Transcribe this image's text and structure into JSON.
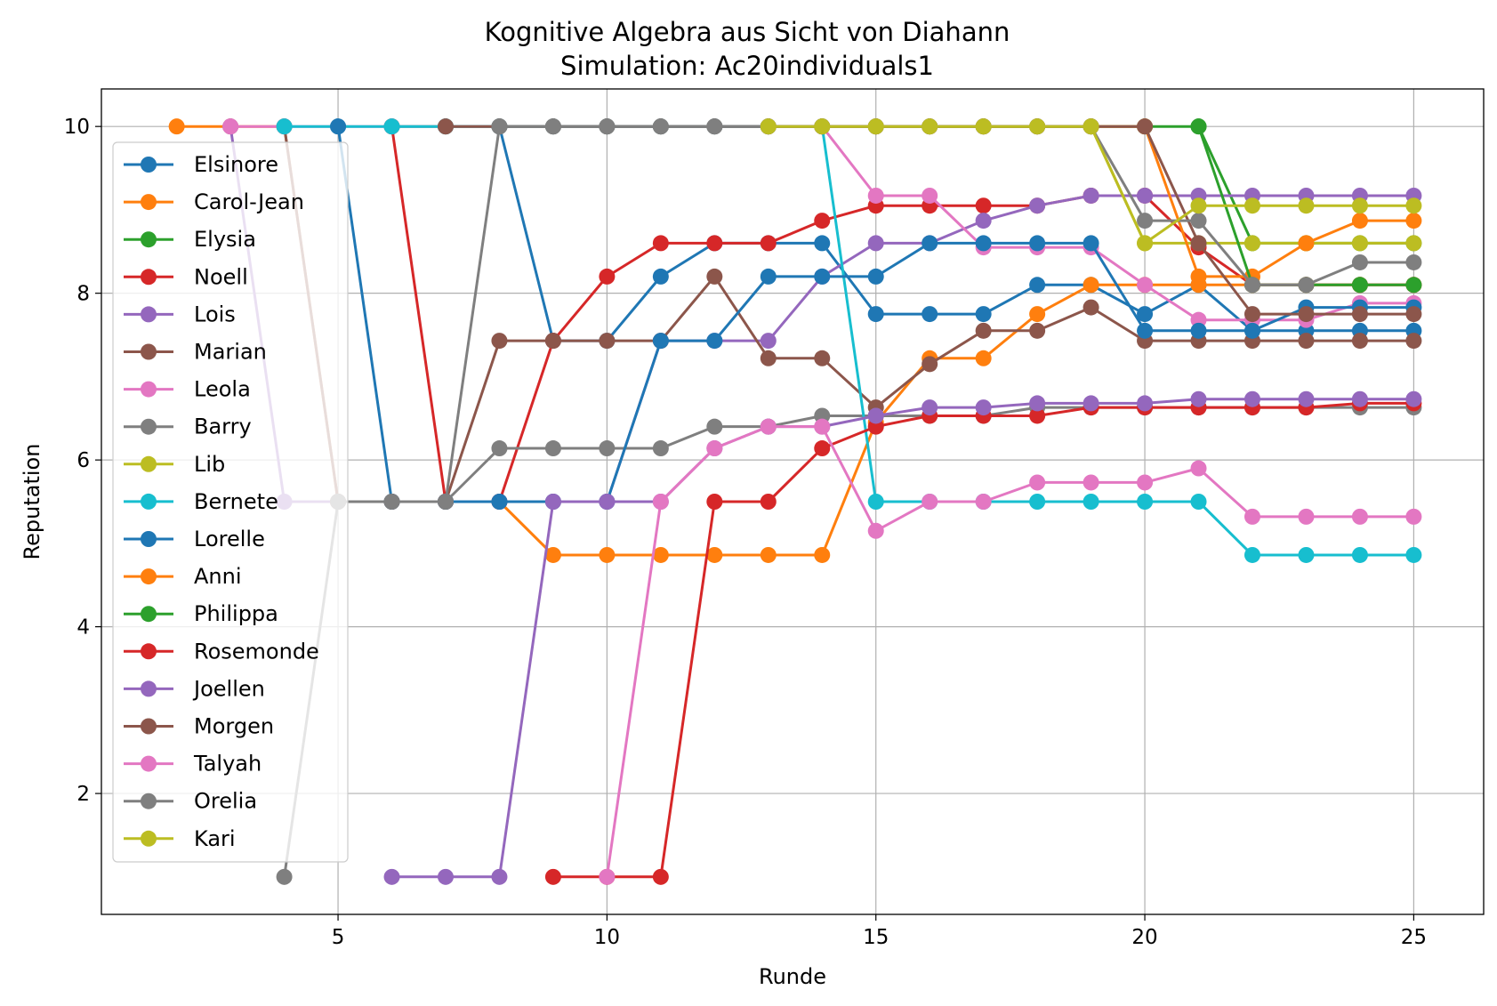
{
  "chart_data": {
    "type": "line",
    "title": "Kognitive Algebra aus Sicht von Diahann",
    "subtitle": "Simulation: Ac20individuals1",
    "xlabel": "Runde",
    "ylabel": "Reputation",
    "xlim": [
      0.6,
      26.3
    ],
    "ylim": [
      0.55,
      10.45
    ],
    "xticks": [
      5,
      10,
      15,
      20,
      25
    ],
    "yticks": [
      2,
      4,
      6,
      8,
      10
    ],
    "grid": true,
    "legend_position": "upper left",
    "series": [
      {
        "name": "Elsinore",
        "color": "#1f77b4",
        "x": [
          8,
          9,
          10,
          11,
          12,
          13,
          14,
          15,
          16,
          17,
          18,
          19,
          20,
          21,
          22,
          23,
          24,
          25
        ],
        "y": [
          10,
          7.43,
          7.43,
          8.2,
          8.6,
          8.6,
          8.6,
          7.75,
          7.75,
          7.75,
          8.1,
          8.1,
          7.75,
          8.1,
          7.55,
          7.55,
          7.55,
          7.55
        ]
      },
      {
        "name": "Carol-Jean",
        "color": "#ff7f0e",
        "x": [
          2,
          3,
          4,
          5,
          6,
          7,
          8,
          9,
          10,
          11,
          12,
          13,
          14,
          15,
          16,
          17,
          18,
          19,
          20,
          21,
          22,
          23,
          24,
          25
        ],
        "y": [
          10,
          10,
          10,
          5.5,
          5.5,
          5.5,
          5.5,
          4.86,
          4.86,
          4.86,
          4.86,
          4.86,
          4.86,
          6.45,
          7.22,
          7.22,
          7.75,
          8.1,
          8.1,
          8.1,
          8.1,
          8.1,
          8.1,
          8.1
        ]
      },
      {
        "name": "Elysia",
        "color": "#2ca02c",
        "x": [
          6,
          7,
          8,
          9,
          10,
          11,
          12,
          13,
          14,
          15,
          16,
          17,
          18,
          19,
          20,
          21,
          22,
          23,
          24,
          25
        ],
        "y": [
          10,
          10,
          10,
          10,
          10,
          10,
          10,
          10,
          10,
          10,
          10,
          10,
          10,
          10,
          10,
          10,
          8.6,
          8.6,
          8.6,
          8.6
        ]
      },
      {
        "name": "Noell",
        "color": "#d62728",
        "x": [
          6,
          7,
          8,
          9,
          10,
          11,
          12,
          13,
          14,
          15,
          16,
          17,
          18,
          19,
          20,
          21,
          22,
          23,
          24,
          25
        ],
        "y": [
          10,
          5.5,
          5.5,
          7.43,
          8.2,
          8.6,
          8.6,
          8.6,
          8.87,
          9.05,
          9.05,
          9.05,
          9.05,
          9.17,
          9.17,
          8.55,
          8.1,
          8.1,
          8.1,
          8.1
        ]
      },
      {
        "name": "Lois",
        "color": "#9467bd",
        "x": [
          3,
          4,
          5,
          6,
          7,
          8,
          9,
          10,
          11,
          12,
          13,
          14,
          15,
          16,
          17,
          18,
          19,
          20,
          21,
          22,
          23,
          24,
          25
        ],
        "y": [
          10,
          5.5,
          5.5,
          5.5,
          5.5,
          5.5,
          5.5,
          5.5,
          7.43,
          7.43,
          7.43,
          8.2,
          8.6,
          8.6,
          8.87,
          9.05,
          9.17,
          9.17,
          9.17,
          9.17,
          9.17,
          9.17,
          9.17
        ]
      },
      {
        "name": "Marian",
        "color": "#8c564b",
        "x": [
          4,
          5,
          6,
          7,
          8,
          9,
          10,
          11,
          12,
          13,
          14,
          15,
          16,
          17,
          18,
          19,
          20,
          21,
          22,
          23,
          24,
          25
        ],
        "y": [
          10,
          5.5,
          5.5,
          5.5,
          7.43,
          7.43,
          7.43,
          7.43,
          8.2,
          7.22,
          7.22,
          6.63,
          7.15,
          7.55,
          7.55,
          7.83,
          7.43,
          7.43,
          7.43,
          7.43,
          7.43,
          7.43
        ]
      },
      {
        "name": "Leola",
        "color": "#e377c2",
        "x": [
          3,
          4,
          5,
          6,
          7,
          8,
          9,
          10,
          11,
          12,
          13,
          14,
          15,
          16,
          17,
          18,
          19,
          20,
          21,
          22,
          23,
          24,
          25
        ],
        "y": [
          10,
          10,
          10,
          10,
          10,
          10,
          10,
          10,
          10,
          10,
          10,
          10,
          9.17,
          9.17,
          8.55,
          8.55,
          8.55,
          8.1,
          7.68,
          7.68,
          7.68,
          7.88,
          7.88
        ]
      },
      {
        "name": "Barry",
        "color": "#7f7f7f",
        "x": [
          7,
          8,
          9,
          10,
          11,
          12,
          13,
          14,
          15,
          16,
          17,
          18,
          19,
          20,
          21,
          22,
          23,
          24,
          25
        ],
        "y": [
          5.5,
          6.14,
          6.14,
          6.14,
          6.14,
          6.4,
          6.4,
          6.53,
          6.53,
          6.53,
          6.53,
          6.63,
          6.63,
          6.63,
          6.63,
          6.63,
          6.63,
          6.63,
          6.63
        ]
      },
      {
        "name": "Lib",
        "color": "#bcbd22",
        "x": [
          13,
          14,
          15,
          16,
          17,
          18,
          19,
          20,
          21,
          22,
          23,
          24,
          25
        ],
        "y": [
          10,
          10,
          10,
          10,
          10,
          10,
          10,
          8.6,
          8.6,
          8.6,
          8.6,
          8.6,
          8.6
        ]
      },
      {
        "name": "Bernete",
        "color": "#17becf",
        "x": [
          4,
          5,
          6,
          7,
          8,
          9,
          10,
          11,
          12,
          13,
          14,
          15,
          16,
          17,
          18,
          19,
          20,
          21,
          22,
          23,
          24,
          25
        ],
        "y": [
          10,
          10,
          10,
          10,
          10,
          10,
          10,
          10,
          10,
          10,
          10,
          5.5,
          5.5,
          5.5,
          5.5,
          5.5,
          5.5,
          5.5,
          4.86,
          4.86,
          4.86,
          4.86
        ]
      },
      {
        "name": "Lorelle",
        "color": "#1f77b4",
        "x": [
          5,
          6,
          7,
          8,
          9,
          10,
          11,
          12,
          13,
          14,
          15,
          16,
          17,
          18,
          19,
          20,
          21,
          22,
          23,
          24,
          25
        ],
        "y": [
          10,
          5.5,
          5.5,
          5.5,
          5.5,
          5.5,
          7.43,
          7.43,
          8.2,
          8.2,
          8.2,
          8.6,
          8.6,
          8.6,
          8.6,
          7.55,
          7.55,
          7.55,
          7.83,
          7.83,
          7.83
        ]
      },
      {
        "name": "Anni",
        "color": "#ff7f0e",
        "x": [
          13,
          14,
          15,
          16,
          17,
          18,
          19,
          20,
          21,
          22,
          23,
          24,
          25
        ],
        "y": [
          10,
          10,
          10,
          10,
          10,
          10,
          10,
          10,
          8.2,
          8.2,
          8.6,
          8.87,
          8.87
        ]
      },
      {
        "name": "Philippa",
        "color": "#2ca02c",
        "x": [
          21,
          22,
          23,
          24,
          25
        ],
        "y": [
          10,
          8.1,
          8.1,
          8.1,
          8.1
        ]
      },
      {
        "name": "Rosemonde",
        "color": "#d62728",
        "x": [
          9,
          10,
          11,
          12,
          13,
          14,
          15,
          16,
          17,
          18,
          19,
          20,
          21,
          22,
          23,
          24,
          25
        ],
        "y": [
          1,
          1,
          1,
          5.5,
          5.5,
          6.14,
          6.4,
          6.53,
          6.53,
          6.53,
          6.63,
          6.63,
          6.63,
          6.63,
          6.63,
          6.68,
          6.68
        ]
      },
      {
        "name": "Joellen",
        "color": "#9467bd",
        "x": [
          6,
          7,
          8,
          9,
          10,
          11,
          12,
          13,
          14,
          15,
          16,
          17,
          18,
          19,
          20,
          21,
          22,
          23,
          24,
          25
        ],
        "y": [
          1,
          1,
          1,
          5.5,
          5.5,
          5.5,
          6.14,
          6.4,
          6.4,
          6.53,
          6.63,
          6.63,
          6.68,
          6.68,
          6.68,
          6.73,
          6.73,
          6.73,
          6.73,
          6.73
        ]
      },
      {
        "name": "Morgen",
        "color": "#8c564b",
        "x": [
          7,
          8,
          9,
          10,
          11,
          12,
          13,
          14,
          15,
          16,
          17,
          18,
          19,
          20,
          21,
          22,
          23,
          24,
          25
        ],
        "y": [
          10,
          10,
          10,
          10,
          10,
          10,
          10,
          10,
          10,
          10,
          10,
          10,
          10,
          10,
          8.6,
          7.75,
          7.75,
          7.75,
          7.75
        ]
      },
      {
        "name": "Talyah",
        "color": "#e377c2",
        "x": [
          10,
          11,
          12,
          13,
          14,
          15,
          16,
          17,
          18,
          19,
          20,
          21,
          22,
          23,
          24,
          25
        ],
        "y": [
          1,
          5.5,
          6.14,
          6.4,
          6.4,
          5.15,
          5.5,
          5.5,
          5.73,
          5.73,
          5.73,
          5.9,
          5.32,
          5.32,
          5.32,
          5.32
        ]
      },
      {
        "name": "Orelia",
        "color": "#7f7f7f",
        "x": [
          4,
          5,
          6,
          7,
          8,
          9,
          10,
          11,
          12,
          13,
          14,
          15,
          16,
          17,
          18,
          19,
          20,
          21,
          22,
          23,
          24,
          25
        ],
        "y": [
          1,
          5.5,
          5.5,
          5.5,
          10,
          10,
          10,
          10,
          10,
          10,
          10,
          10,
          10,
          10,
          10,
          10,
          8.87,
          8.87,
          8.1,
          8.1,
          8.37,
          8.37
        ]
      },
      {
        "name": "Kari",
        "color": "#bcbd22",
        "x": [
          13,
          14,
          15,
          16,
          17,
          18,
          19,
          20,
          21,
          22,
          23,
          24,
          25
        ],
        "y": [
          10,
          10,
          10,
          10,
          10,
          10,
          10,
          8.6,
          9.05,
          9.05,
          9.05,
          9.05,
          9.05
        ]
      }
    ]
  }
}
